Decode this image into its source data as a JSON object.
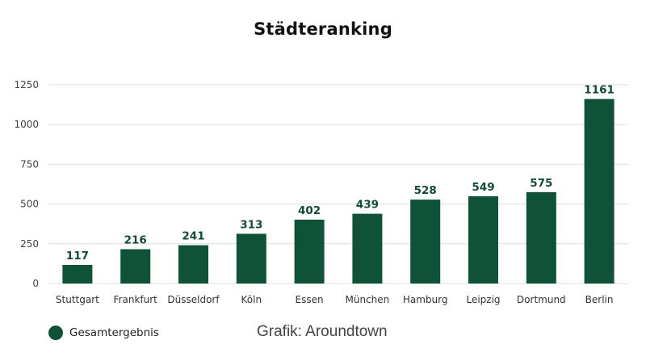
{
  "colors": {
    "bar": "#0f5238",
    "label": "#134b33",
    "grid": "#dddddd"
  },
  "source": "Grafik: Aroundtown",
  "chart_data": {
    "type": "bar",
    "title": "Städteranking",
    "xlabel": "",
    "ylabel": "",
    "categories": [
      "Stuttgart",
      "Frankfurt",
      "Düsseldorf",
      "Köln",
      "Essen",
      "München",
      "Hamburg",
      "Leipzig",
      "Dortmund",
      "Berlin"
    ],
    "series": [
      {
        "name": "Gesamtergebnis",
        "values": [
          117,
          216,
          241,
          313,
          402,
          439,
          528,
          549,
          575,
          1161
        ]
      }
    ],
    "ylim": [
      0,
      1250
    ],
    "yticks": [
      0,
      250,
      500,
      750,
      1000,
      1250
    ],
    "grid": true,
    "legend": "bottom-left",
    "data_labels": true
  }
}
